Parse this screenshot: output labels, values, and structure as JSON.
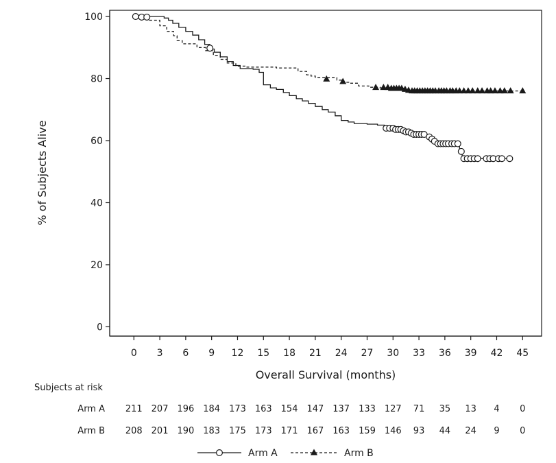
{
  "chart_data": {
    "type": "line",
    "subtype": "kaplan-meier",
    "xlabel": "Overall Survival (months)",
    "ylabel": "% of Subjects Alive",
    "x_ticks": [
      0,
      3,
      6,
      9,
      12,
      15,
      18,
      21,
      24,
      27,
      30,
      33,
      36,
      39,
      42,
      45
    ],
    "y_ticks": [
      0,
      20,
      40,
      60,
      80,
      100
    ],
    "xlim": [
      -2.8,
      47.2
    ],
    "ylim": [
      -3,
      102
    ],
    "grid": false,
    "legend_position": "bottom",
    "series": [
      {
        "name": "Arm A",
        "line_style": "solid",
        "marker": "open-circle",
        "color": "#1a1a1a",
        "steps": [
          [
            0,
            100
          ],
          [
            3.5,
            99.5
          ],
          [
            4,
            98.8
          ],
          [
            4.5,
            97.8
          ],
          [
            5.2,
            96.5
          ],
          [
            6,
            95.2
          ],
          [
            6.8,
            94
          ],
          [
            7.5,
            92.5
          ],
          [
            8.2,
            91
          ],
          [
            8.8,
            89.5
          ],
          [
            9.3,
            88.5
          ],
          [
            10,
            87
          ],
          [
            10.8,
            85.5
          ],
          [
            11.5,
            84.2
          ],
          [
            12.3,
            83.2
          ],
          [
            13.8,
            83
          ],
          [
            14.5,
            82
          ],
          [
            15,
            78
          ],
          [
            15.8,
            77
          ],
          [
            16.5,
            76.5
          ],
          [
            17.3,
            75.5
          ],
          [
            18,
            74.5
          ],
          [
            18.8,
            73.5
          ],
          [
            19.5,
            72.8
          ],
          [
            20.2,
            72
          ],
          [
            21,
            71
          ],
          [
            21.8,
            70
          ],
          [
            22.5,
            69.2
          ],
          [
            23.3,
            68
          ],
          [
            24,
            66.5
          ],
          [
            24.8,
            66
          ],
          [
            25.5,
            65.5
          ],
          [
            27,
            65.3
          ],
          [
            28.2,
            65
          ],
          [
            29,
            64.2
          ],
          [
            29.8,
            64
          ],
          [
            31.2,
            63.5
          ],
          [
            32,
            62.5
          ],
          [
            33.5,
            62
          ],
          [
            34.3,
            61.2
          ],
          [
            34.8,
            60
          ],
          [
            35.2,
            59
          ],
          [
            37.7,
            57
          ],
          [
            38,
            54.2
          ],
          [
            43.5,
            54.2
          ]
        ],
        "censored": [
          [
            0.2,
            100
          ],
          [
            0.9,
            99.8
          ],
          [
            1.5,
            99.8
          ],
          [
            8.8,
            89.8
          ],
          [
            29.2,
            64
          ],
          [
            29.6,
            64
          ],
          [
            30,
            64
          ],
          [
            30.3,
            63.6
          ],
          [
            30.6,
            63.6
          ],
          [
            30.9,
            63.6
          ],
          [
            31.2,
            63.2
          ],
          [
            31.5,
            62.8
          ],
          [
            31.8,
            62.8
          ],
          [
            32.1,
            62.4
          ],
          [
            32.4,
            62
          ],
          [
            32.7,
            62
          ],
          [
            33,
            62
          ],
          [
            33.3,
            62
          ],
          [
            33.6,
            62
          ],
          [
            34.2,
            61.2
          ],
          [
            34.5,
            60.5
          ],
          [
            34.8,
            59.8
          ],
          [
            35.2,
            59
          ],
          [
            35.5,
            59
          ],
          [
            35.8,
            59
          ],
          [
            36.1,
            59
          ],
          [
            36.4,
            59
          ],
          [
            36.8,
            59
          ],
          [
            37.1,
            59
          ],
          [
            37.5,
            59
          ],
          [
            37.9,
            56.5
          ],
          [
            38.2,
            54.2
          ],
          [
            38.6,
            54.2
          ],
          [
            39,
            54.2
          ],
          [
            39.4,
            54.2
          ],
          [
            39.8,
            54.2
          ],
          [
            40.8,
            54.2
          ],
          [
            41.2,
            54.2
          ],
          [
            41.6,
            54.2
          ],
          [
            42.2,
            54.2
          ],
          [
            42.6,
            54.2
          ],
          [
            43.5,
            54.2
          ]
        ]
      },
      {
        "name": "Arm B",
        "line_style": "dashed",
        "marker": "filled-triangle",
        "color": "#1a1a1a",
        "steps": [
          [
            0,
            100
          ],
          [
            1.8,
            98.8
          ],
          [
            3,
            97
          ],
          [
            3.8,
            95.2
          ],
          [
            4.6,
            93.8
          ],
          [
            5,
            92.2
          ],
          [
            5.6,
            91.2
          ],
          [
            7.3,
            90
          ],
          [
            8.3,
            89
          ],
          [
            9.2,
            87.5
          ],
          [
            10,
            86.2
          ],
          [
            10.8,
            85
          ],
          [
            11.8,
            84
          ],
          [
            13,
            83.7
          ],
          [
            16.5,
            83.4
          ],
          [
            19,
            82.3
          ],
          [
            20,
            81.2
          ],
          [
            20.5,
            80.8
          ],
          [
            21,
            80.3
          ],
          [
            23.5,
            79.5
          ],
          [
            24.2,
            78.8
          ],
          [
            25,
            78.5
          ],
          [
            26,
            77.6
          ],
          [
            27.2,
            77.2
          ],
          [
            28.5,
            77
          ],
          [
            30.5,
            76.9
          ],
          [
            31.3,
            76.4
          ],
          [
            32,
            76
          ],
          [
            45,
            76
          ]
        ],
        "censored": [
          [
            22.3,
            79.8
          ],
          [
            24.2,
            79
          ],
          [
            28,
            77.1
          ],
          [
            28.9,
            77.1
          ],
          [
            29.4,
            77.1
          ],
          [
            29.8,
            76.8
          ],
          [
            30.1,
            76.8
          ],
          [
            30.4,
            76.8
          ],
          [
            30.7,
            76.8
          ],
          [
            31,
            76.8
          ],
          [
            31.4,
            76.5
          ],
          [
            31.8,
            76.2
          ],
          [
            32.2,
            76
          ],
          [
            32.5,
            76
          ],
          [
            32.8,
            76
          ],
          [
            33.1,
            76
          ],
          [
            33.4,
            76
          ],
          [
            33.7,
            76
          ],
          [
            34,
            76
          ],
          [
            34.3,
            76
          ],
          [
            34.6,
            76
          ],
          [
            34.9,
            76
          ],
          [
            35.3,
            76
          ],
          [
            35.6,
            76
          ],
          [
            35.9,
            76
          ],
          [
            36.2,
            76
          ],
          [
            36.6,
            76
          ],
          [
            36.9,
            76
          ],
          [
            37.3,
            76
          ],
          [
            37.7,
            76
          ],
          [
            38.2,
            76
          ],
          [
            38.7,
            76
          ],
          [
            39.2,
            76
          ],
          [
            39.8,
            76
          ],
          [
            40.3,
            76
          ],
          [
            40.9,
            76
          ],
          [
            41.3,
            76
          ],
          [
            41.8,
            76
          ],
          [
            42.4,
            76
          ],
          [
            42.9,
            76
          ],
          [
            43.6,
            76
          ],
          [
            45,
            76
          ]
        ]
      }
    ],
    "risk_table": {
      "title": "Subjects at risk",
      "rows": [
        {
          "label": "Arm A",
          "values": [
            211,
            207,
            196,
            184,
            173,
            163,
            154,
            147,
            137,
            133,
            127,
            71,
            35,
            13,
            4,
            0
          ]
        },
        {
          "label": "Arm B",
          "values": [
            208,
            201,
            190,
            183,
            175,
            173,
            171,
            167,
            163,
            159,
            146,
            93,
            44,
            24,
            9,
            0
          ]
        }
      ]
    },
    "legend": [
      {
        "label": "Arm A"
      },
      {
        "label": "Arm B"
      }
    ]
  }
}
